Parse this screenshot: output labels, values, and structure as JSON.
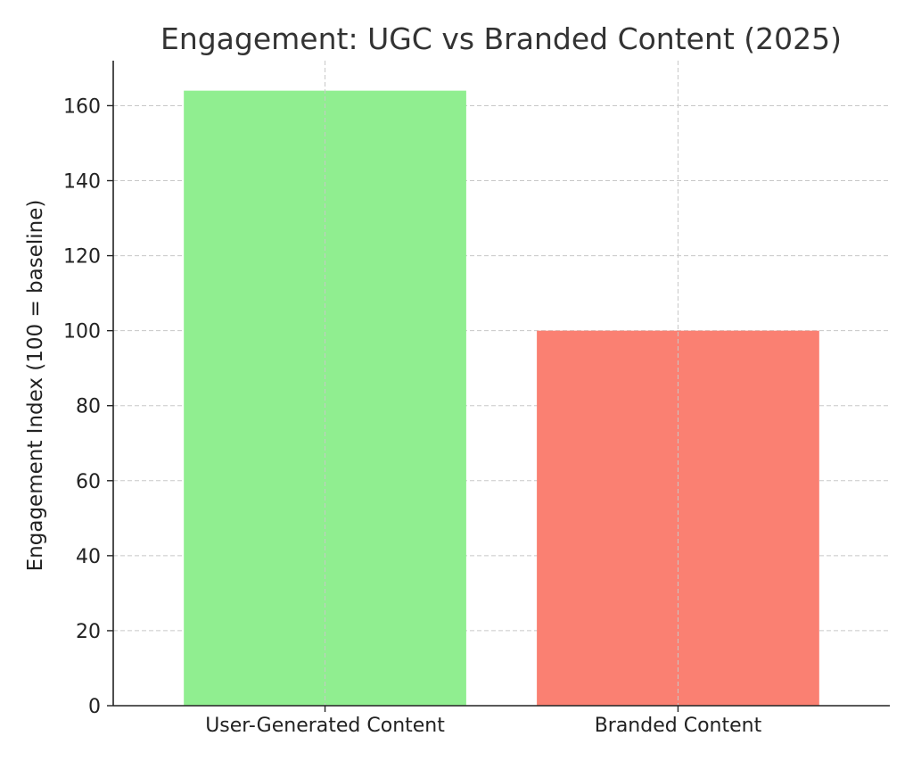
{
  "chart_data": {
    "type": "bar",
    "title": "Engagement: UGC vs Branded Content (2025)",
    "xlabel": "",
    "ylabel": "Engagement Index (100 = baseline)",
    "categories": [
      "User-Generated Content",
      "Branded Content"
    ],
    "values": [
      164,
      100
    ],
    "colors": [
      "#90ee90",
      "#fa8072"
    ],
    "ylim": [
      0,
      172
    ],
    "yticks": [
      0,
      20,
      40,
      60,
      80,
      100,
      120,
      140,
      160
    ],
    "grid": true,
    "legend": "none"
  }
}
